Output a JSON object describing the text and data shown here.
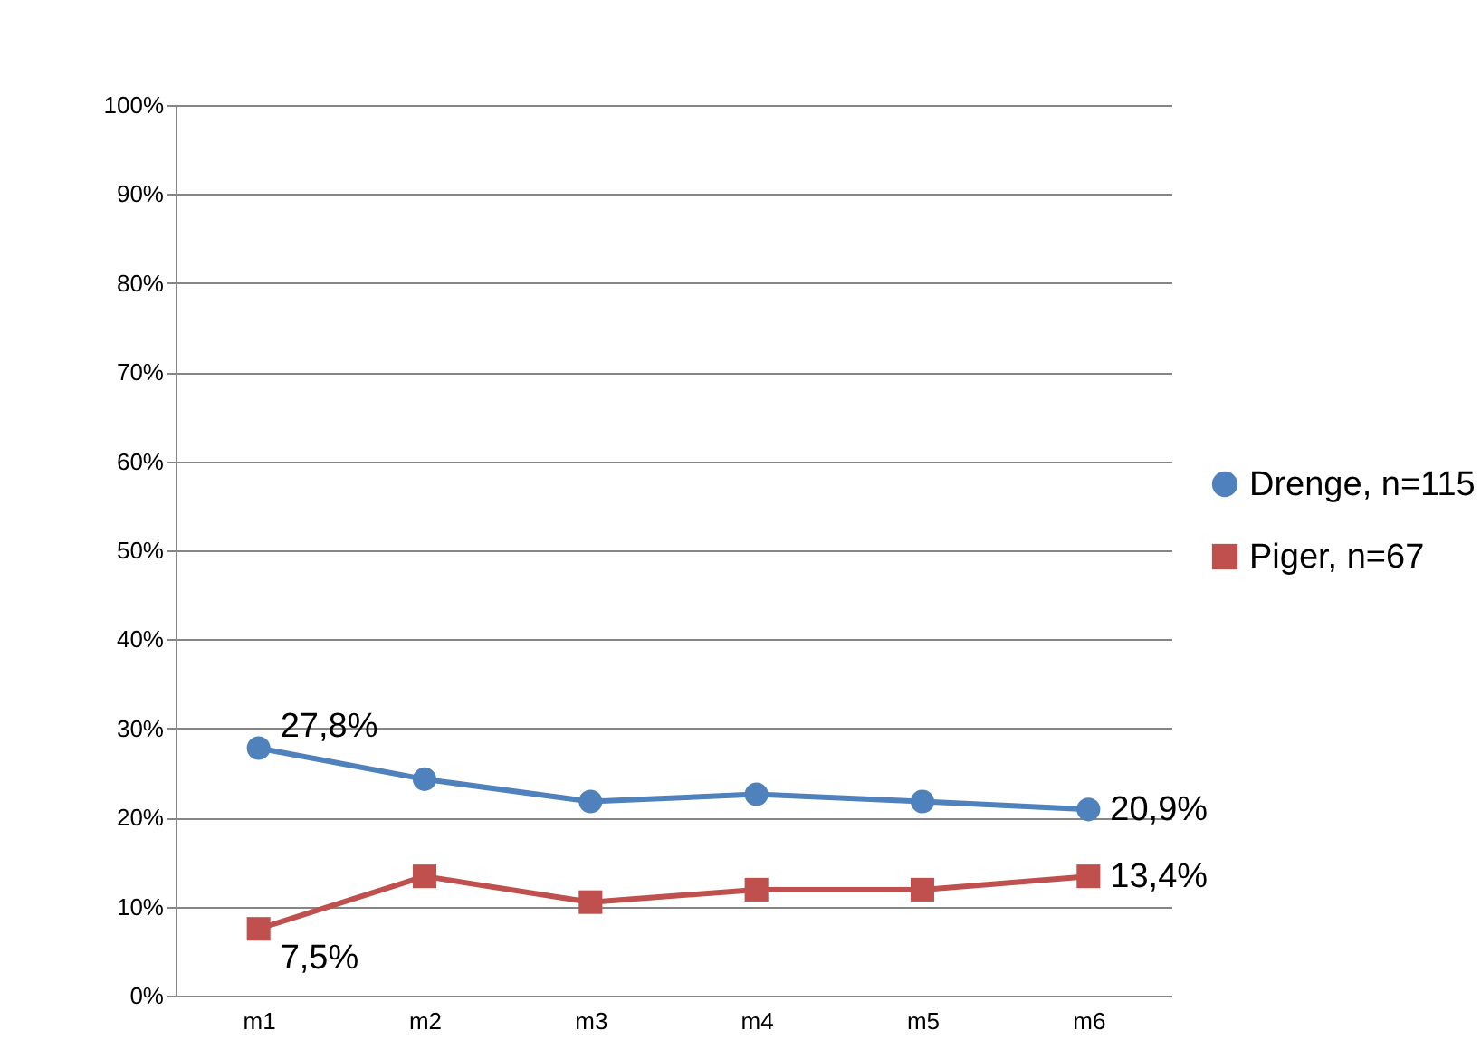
{
  "chart_data": {
    "type": "line",
    "categories": [
      "m1",
      "m2",
      "m3",
      "m4",
      "m5",
      "m6"
    ],
    "series": [
      {
        "name": "Drenge, n=115",
        "color": "#4f81bd",
        "marker": "circle",
        "values": [
          27.8,
          24.3,
          21.8,
          22.6,
          21.8,
          20.9
        ],
        "value_labels": [
          "27,8%",
          null,
          null,
          null,
          null,
          "20,9%"
        ]
      },
      {
        "name": "Piger, n=67",
        "color": "#c0504d",
        "marker": "square",
        "values": [
          7.5,
          13.4,
          10.5,
          11.9,
          11.9,
          13.4
        ],
        "value_labels": [
          "7,5%",
          null,
          null,
          null,
          null,
          "13,4%"
        ]
      }
    ],
    "ylim": [
      0,
      100
    ],
    "yticks": [
      {
        "value": 0,
        "label": "0%"
      },
      {
        "value": 10,
        "label": "10%"
      },
      {
        "value": 20,
        "label": "20%"
      },
      {
        "value": 30,
        "label": "30%"
      },
      {
        "value": 40,
        "label": "40%"
      },
      {
        "value": 50,
        "label": "50%"
      },
      {
        "value": 60,
        "label": "60%"
      },
      {
        "value": 70,
        "label": "70%"
      },
      {
        "value": 80,
        "label": "80%"
      },
      {
        "value": 90,
        "label": "90%"
      },
      {
        "value": 100,
        "label": "100%"
      }
    ],
    "grid": "y",
    "legend": "right"
  }
}
